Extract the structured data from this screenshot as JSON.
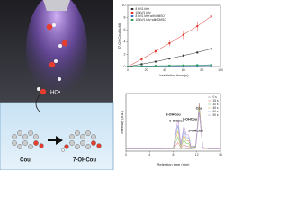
{
  "chart_data": [
    {
      "type": "line",
      "markers": true,
      "ylabel": "[7-OHCou] (μM)",
      "xlabel": "Irradiation time (s)",
      "x": [
        0,
        15,
        30,
        45,
        60,
        75,
        90
      ],
      "xlim": [
        0,
        100
      ],
      "xticks": [
        0,
        20,
        40,
        60,
        80,
        100
      ],
      "ylim": [
        0,
        10
      ],
      "yticks": [
        0,
        2,
        4,
        6,
        8,
        10
      ],
      "legend": "upper left",
      "series": [
        {
          "name": "8 kV/1 kHz",
          "color": "#333333",
          "values": [
            0,
            0.4,
            0.8,
            1.3,
            1.8,
            2.3,
            2.9
          ],
          "errors": [
            0,
            0.1,
            0.1,
            0.15,
            0.2,
            0.2,
            0.25
          ]
        },
        {
          "name": "10 kV/1 kHz",
          "color": "#e0302a",
          "values": [
            0,
            1.2,
            2.5,
            3.8,
            5.2,
            6.6,
            8.2
          ],
          "errors": [
            0,
            0.3,
            0.4,
            0.5,
            0.7,
            0.8,
            0.9
          ]
        },
        {
          "name": "8 kV/1 kHz with DMSO",
          "color": "#3b6fd0",
          "values": [
            0,
            0.05,
            0.08,
            0.1,
            0.12,
            0.14,
            0.16
          ],
          "errors": [
            0,
            0.02,
            0.02,
            0.03,
            0.03,
            0.03,
            0.04
          ]
        },
        {
          "name": "10 kV/1 kHz with DMSO",
          "color": "#2a9d5a",
          "values": [
            0,
            0.08,
            0.12,
            0.16,
            0.2,
            0.24,
            0.28
          ],
          "errors": [
            0,
            0.02,
            0.03,
            0.03,
            0.04,
            0.04,
            0.05
          ]
        }
      ]
    },
    {
      "type": "line",
      "markers": false,
      "ylabel": "Intensity (a.u.)",
      "xlabel": "Retention time (min)",
      "x": [
        0,
        2,
        4,
        6,
        8,
        8.8,
        9.3,
        9.8,
        10.2,
        10.6,
        11,
        11.8,
        12.4,
        13,
        14,
        16
      ],
      "xlim": [
        0,
        16
      ],
      "xticks": [
        0,
        4,
        8,
        12,
        16
      ],
      "ylim": [
        0,
        1.2
      ],
      "legend": "upper right",
      "annotations": [
        "8-OHCou",
        "6-OHCou",
        "7-OHCou",
        "5-OHCou",
        "Cou"
      ],
      "series": [
        {
          "name": "0 s",
          "color": "#999999",
          "values": [
            0.05,
            0.05,
            0.05,
            0.05,
            0.05,
            0.06,
            0.05,
            0.06,
            0.05,
            0.05,
            0.05,
            0.06,
            1.0,
            0.06,
            0.05,
            0.05
          ]
        },
        {
          "name": "15 s",
          "color": "#f08c8c",
          "values": [
            0.05,
            0.05,
            0.05,
            0.05,
            0.05,
            0.18,
            0.07,
            0.14,
            0.1,
            0.1,
            0.06,
            0.07,
            0.96,
            0.06,
            0.05,
            0.05
          ]
        },
        {
          "name": "30 s",
          "color": "#8cc97a",
          "values": [
            0.05,
            0.05,
            0.05,
            0.05,
            0.05,
            0.3,
            0.09,
            0.24,
            0.16,
            0.16,
            0.07,
            0.08,
            0.92,
            0.07,
            0.05,
            0.05
          ]
        },
        {
          "name": "45 s",
          "color": "#e3b860",
          "values": [
            0.05,
            0.05,
            0.05,
            0.05,
            0.06,
            0.42,
            0.11,
            0.34,
            0.22,
            0.22,
            0.08,
            0.09,
            0.88,
            0.07,
            0.05,
            0.05
          ]
        },
        {
          "name": "60 s",
          "color": "#86aee0",
          "values": [
            0.05,
            0.05,
            0.05,
            0.05,
            0.06,
            0.54,
            0.13,
            0.44,
            0.28,
            0.28,
            0.09,
            0.1,
            0.84,
            0.08,
            0.05,
            0.05
          ]
        },
        {
          "name": "90 s",
          "color": "#c49ad8",
          "values": [
            0.05,
            0.05,
            0.05,
            0.05,
            0.06,
            0.66,
            0.15,
            0.54,
            0.34,
            0.34,
            0.1,
            0.11,
            0.8,
            0.08,
            0.05,
            0.05
          ]
        }
      ]
    }
  ],
  "diagram": {
    "hydroxyl": "HO•",
    "reactant": "Cou",
    "product": "7-OHCou"
  }
}
